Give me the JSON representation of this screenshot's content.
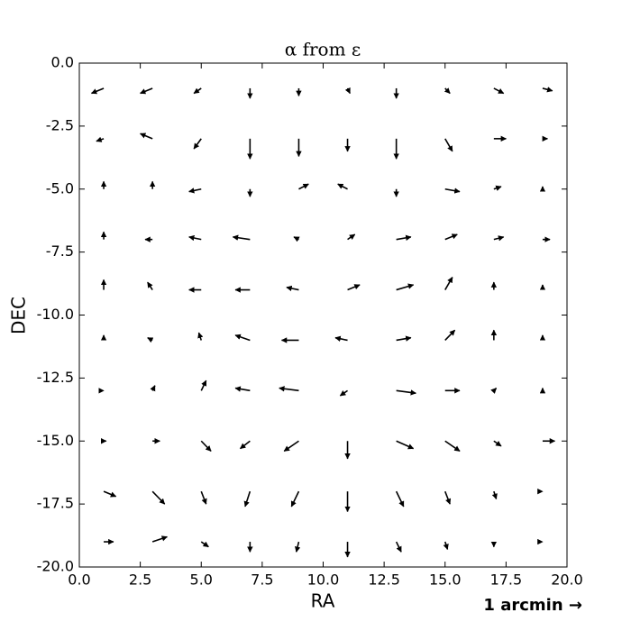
{
  "chart_data": {
    "type": "quiver",
    "title": "α from ε",
    "x_label": "RA",
    "y_label": "DEC",
    "key_label": "1 arcmin →",
    "color": "#000000",
    "xlim": [
      0,
      20
    ],
    "ylim": [
      -20,
      0
    ],
    "xticks": [
      {
        "value": 0,
        "label": "0.0"
      },
      2.5,
      {
        "value": 5,
        "label": "5.0"
      },
      7.5,
      {
        "value": 10,
        "label": "10.0"
      },
      12.5,
      {
        "value": 15,
        "label": "15.0"
      },
      17.5,
      {
        "value": 20,
        "label": "20.0"
      }
    ],
    "yticks": [
      {
        "value": 0,
        "label": "0.0"
      },
      -2.5,
      {
        "value": -5,
        "label": "-5.0"
      },
      -7.5,
      {
        "value": -10,
        "label": "-10.0"
      },
      -12.5,
      {
        "value": -15,
        "label": "-15.0"
      },
      -17.5,
      {
        "value": -20,
        "label": "-20.0"
      }
    ],
    "x": [
      1,
      3,
      5,
      7,
      9,
      11,
      13,
      15,
      17,
      19
    ],
    "y": [
      -1,
      -3,
      -5,
      -7,
      -9,
      -11,
      -13,
      -15,
      -17,
      -19
    ],
    "u": [
      [
        -0.5,
        -0.5,
        -0.3,
        0,
        0,
        0.1,
        0,
        0.2,
        0.4,
        0.4
      ],
      [
        -0.3,
        -0.5,
        -0.3,
        0,
        0,
        0,
        0,
        0.3,
        0.5,
        0.2
      ],
      [
        0,
        0,
        -0.5,
        0,
        0.4,
        -0.4,
        0,
        0.6,
        0.3,
        0
      ],
      [
        0,
        -0.3,
        -0.5,
        -0.7,
        -0.2,
        0.3,
        0.6,
        0.5,
        0.4,
        0.3
      ],
      [
        0,
        -0.2,
        -0.5,
        -0.6,
        -0.5,
        0.5,
        0.7,
        0.3,
        0,
        0
      ],
      [
        0,
        -0.2,
        -0.1,
        -0.6,
        -0.7,
        -0.5,
        0.6,
        0.4,
        0,
        0
      ],
      [
        0,
        0.1,
        0.2,
        -0.6,
        -0.8,
        -0.3,
        0.8,
        0.6,
        0.1,
        0
      ],
      [
        0.1,
        0.3,
        0.4,
        -0.4,
        -0.6,
        0,
        0.7,
        0.6,
        0.3,
        0.5
      ],
      [
        0.5,
        0.5,
        0.2,
        -0.2,
        -0.3,
        0,
        0.3,
        0.2,
        0.1,
        0
      ],
      [
        0.4,
        0.6,
        0.3,
        0,
        -0.1,
        0,
        0.2,
        0.1,
        0,
        0
      ]
    ],
    "v": [
      [
        -0.2,
        -0.2,
        -0.2,
        -0.4,
        -0.3,
        -0.2,
        -0.4,
        -0.2,
        -0.2,
        -0.1
      ],
      [
        -0.1,
        0.2,
        -0.4,
        -0.8,
        -0.7,
        -0.5,
        -0.8,
        -0.5,
        0,
        0
      ],
      [
        0.3,
        0.3,
        -0.1,
        -0.3,
        0.2,
        0.2,
        -0.3,
        -0.1,
        0.1,
        0.1
      ],
      [
        0.3,
        0,
        0.1,
        0.1,
        0.1,
        0.2,
        0.1,
        0.2,
        0.1,
        0
      ],
      [
        0.4,
        0.3,
        0,
        0,
        0.1,
        0.2,
        0.2,
        0.5,
        0.3,
        0.2
      ],
      [
        0.2,
        0.1,
        0.3,
        0.2,
        0,
        0.1,
        0.1,
        0.4,
        0.4,
        0.2
      ],
      [
        0,
        0.2,
        0.4,
        0.1,
        0.1,
        -0.2,
        -0.1,
        0,
        0.1,
        0.1
      ],
      [
        0,
        0,
        -0.4,
        -0.3,
        -0.4,
        -0.7,
        -0.3,
        -0.4,
        -0.2,
        0
      ],
      [
        -0.2,
        -0.5,
        -0.5,
        -0.6,
        -0.6,
        -0.8,
        -0.6,
        -0.5,
        -0.3,
        0
      ],
      [
        0,
        0.2,
        -0.2,
        -0.4,
        -0.4,
        -0.6,
        -0.4,
        -0.3,
        -0.2,
        0
      ]
    ]
  }
}
